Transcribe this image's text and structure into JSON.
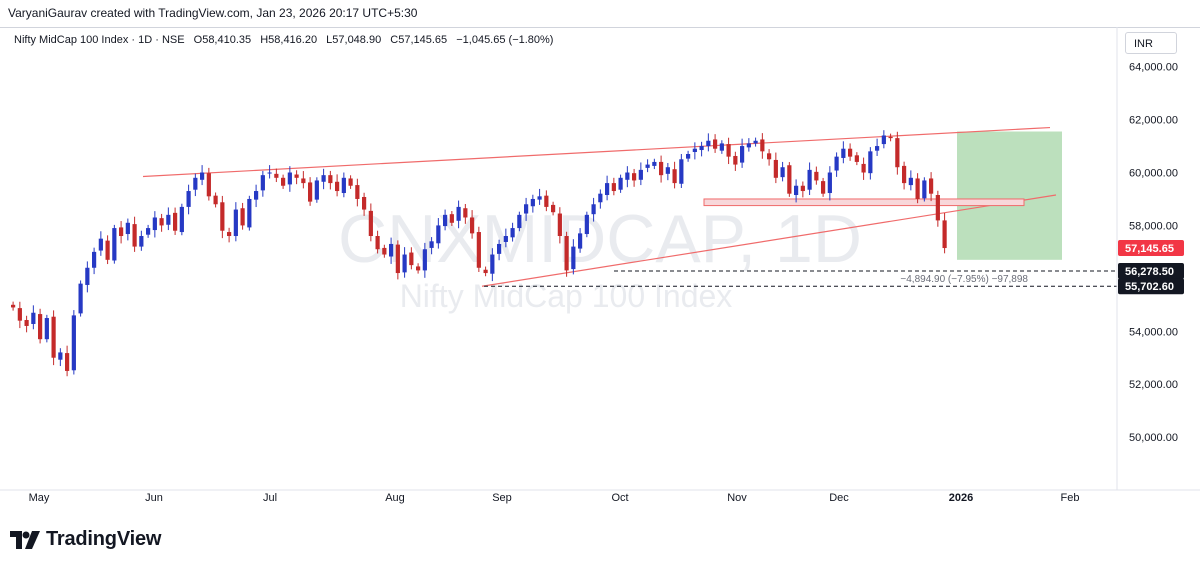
{
  "header": {
    "credit": "VaryaniGaurav created with TradingView.com, Jan 23, 2026 20:17 UTC+5:30"
  },
  "legend": {
    "symbol": "Nifty MidCap 100 Index · 1D · NSE",
    "open": "O58,410.35",
    "high": "H58,416.20",
    "low": "L57,048.90",
    "close": "C57,145.65",
    "change": "−1,045.65 (−1.80%)"
  },
  "currency": "INR",
  "watermark": {
    "ticker": "CNXMIDCAP, 1D",
    "name": "Nifty MidCap 100 Index"
  },
  "footer": {
    "brand": "TradingView"
  },
  "colors": {
    "up": "#2639c4",
    "down": "#c42a2a",
    "trend": "#f06b6b",
    "zone": "#a5d6a7",
    "price_label": "#f23645",
    "level_label": "#131722"
  },
  "chart_data": {
    "type": "candlestick",
    "ylim": [
      48000,
      65500
    ],
    "y_ticks": [
      "50,000.00",
      "52,000.00",
      "54,000.00",
      "56,000.00",
      "58,000.00",
      "60,000.00",
      "62,000.00",
      "64,000.00"
    ],
    "y_tick_values": [
      50000,
      52000,
      54000,
      56000,
      58000,
      60000,
      62000,
      64000
    ],
    "x_labels": [
      "May",
      "Jun",
      "Jul",
      "Aug",
      "Sep",
      "Oct",
      "Nov",
      "Dec",
      "2026",
      "Feb"
    ],
    "x_label_bold": [
      false,
      false,
      false,
      false,
      false,
      false,
      false,
      false,
      true,
      false
    ],
    "price_labels": [
      {
        "text": "57,145.65",
        "value": 57145.65,
        "style": "last"
      },
      {
        "text": "56,278.50",
        "value": 56278.5,
        "style": "level"
      },
      {
        "text": "55,702.60",
        "value": 55702.6,
        "style": "level"
      }
    ],
    "measure_text": "−4,894.90 (−7.95%) −97,898",
    "closes": [
      54900,
      54400,
      54200,
      54700,
      53700,
      54500,
      53000,
      53200,
      52500,
      54600,
      55800,
      56400,
      57000,
      57500,
      56700,
      57900,
      57600,
      58100,
      57200,
      57600,
      57900,
      58300,
      58000,
      58400,
      57800,
      58700,
      59300,
      59800,
      60000,
      59100,
      58800,
      57800,
      57600,
      58600,
      58000,
      59000,
      59300,
      59900,
      60000,
      59800,
      59500,
      60000,
      59800,
      59600,
      58900,
      59700,
      59900,
      59600,
      59300,
      59800,
      59500,
      59000,
      58600,
      57600,
      57100,
      56900,
      57300,
      56200,
      56900,
      56500,
      56300,
      57100,
      57400,
      58000,
      58400,
      58100,
      58700,
      58300,
      57700,
      56400,
      56200,
      56900,
      57300,
      57600,
      57900,
      58400,
      58800,
      59000,
      59100,
      58700,
      58500,
      57600,
      56300,
      57200,
      57700,
      58400,
      58800,
      59200,
      59600,
      59300,
      59800,
      60000,
      59700,
      60100,
      60300,
      60400,
      59900,
      60200,
      59600,
      60500,
      60700,
      60900,
      61000,
      61200,
      60900,
      61100,
      60600,
      60300,
      61000,
      61100,
      61200,
      60800,
      60500,
      59800,
      60200,
      59200,
      59500,
      59300,
      60100,
      59700,
      59200,
      60000,
      60600,
      60900,
      60600,
      60400,
      60000,
      60800,
      61000,
      61400,
      61300,
      60200,
      59600,
      59800,
      59000,
      59700,
      59200,
      58190,
      57145.65
    ]
  }
}
